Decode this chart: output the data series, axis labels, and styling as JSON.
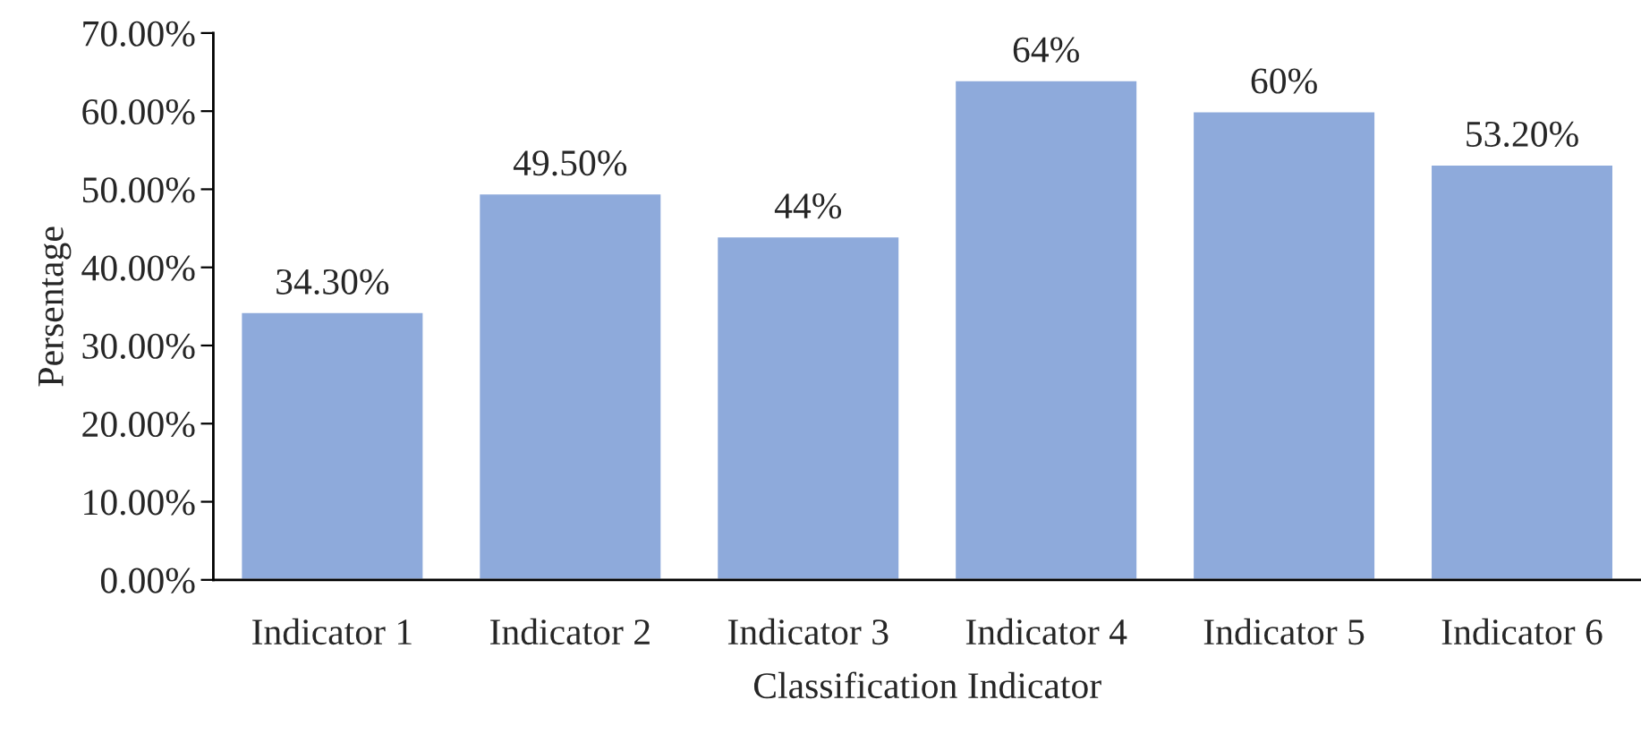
{
  "chart_data": {
    "type": "bar",
    "xlabel": "Classification Indicator",
    "ylabel": "Persentage",
    "categories": [
      "Indicator 1",
      "Indicator 2",
      "Indicator 3",
      "Indicator 4",
      "Indicator 5",
      "Indicator 6"
    ],
    "values": [
      34.3,
      49.5,
      44,
      64,
      60,
      53.2
    ],
    "value_labels": [
      "34.30%",
      "49.50%",
      "44%",
      "64%",
      "60%",
      "53.20%"
    ],
    "color": "#8eaadb",
    "ylim": [
      0,
      70
    ],
    "yticks": [
      {
        "value": 0,
        "label": "0.00%"
      },
      {
        "value": 10,
        "label": "10.00%"
      },
      {
        "value": 20,
        "label": "20.00%"
      },
      {
        "value": 30,
        "label": "30.00%"
      },
      {
        "value": 40,
        "label": "40.00%"
      },
      {
        "value": 50,
        "label": "50.00%"
      },
      {
        "value": 60,
        "label": "60.00%"
      },
      {
        "value": 70,
        "label": "70.00%"
      }
    ],
    "grid": false,
    "legend": false
  }
}
